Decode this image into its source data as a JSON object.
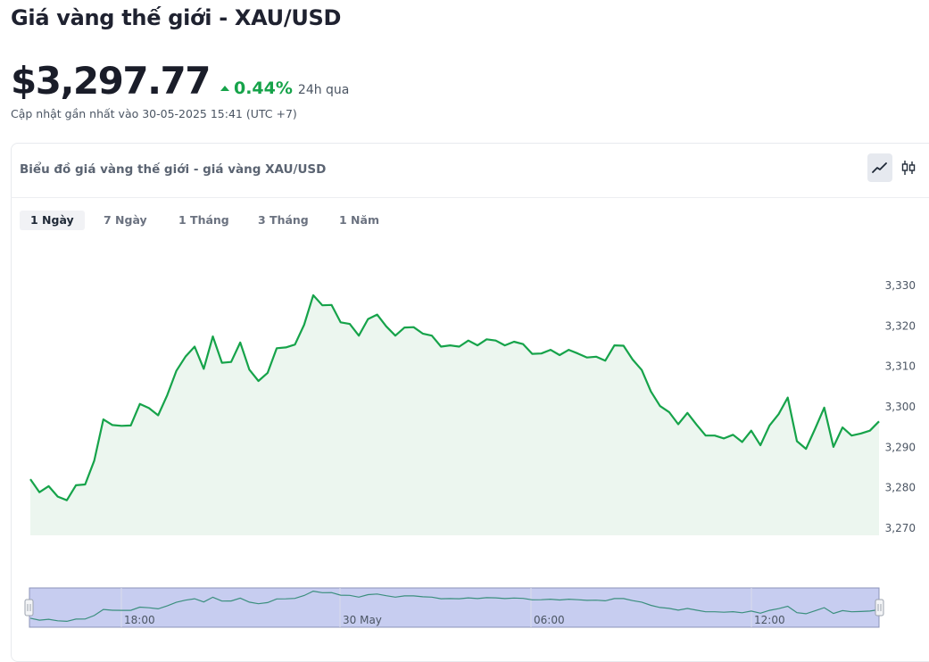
{
  "header": {
    "title": "Giá vàng thế giới - XAU/USD",
    "price": "$3,297.77",
    "change": "0.44%",
    "period": "24h qua",
    "updated": "Cập nhật gần nhất vào 30-05-2025 15:41 (UTC +7)"
  },
  "card": {
    "title": "Biểu đồ giá vàng thế giới - giá vàng XAU/USD",
    "chart_types": [
      "line-chart-icon",
      "candlestick-icon"
    ]
  },
  "ranges": [
    "1 Ngày",
    "7 Ngày",
    "1 Tháng",
    "3 Tháng",
    "1 Năm"
  ],
  "active_range": "1 Ngày",
  "colors": {
    "line": "#16a34a",
    "fill": "#ecf6ef",
    "navigator": "#c7cdf0",
    "up": "#16a34a"
  },
  "chart_data": {
    "type": "area",
    "title": "",
    "xlabel": "",
    "ylabel": "",
    "ylim": [
      3270,
      3330
    ],
    "yticks": [
      3330,
      3320,
      3310,
      3300,
      3290,
      3280,
      3270
    ],
    "ytick_labels": [
      "3,330",
      "3,320",
      "3,310",
      "3,300",
      "3,290",
      "3,280",
      "3,270"
    ],
    "navigator_labels": [
      "18:00",
      "30 May",
      "06:00",
      "12:00"
    ],
    "grid": false,
    "series": [
      {
        "values": [
          3282.1,
          3278.9,
          3280.4,
          3277.8,
          3276.9,
          3280.6,
          3280.8,
          3286.7,
          3296.9,
          3295.5,
          3295.3,
          3295.4,
          3300.7,
          3299.7,
          3297.9,
          3302.9,
          3308.9,
          3312.4,
          3314.9,
          3309.4,
          3317.4,
          3310.9,
          3311.1,
          3315.9,
          3309.2,
          3306.4,
          3308.4,
          3314.5,
          3314.7,
          3315.4,
          3320.3,
          3327.6,
          3325.1,
          3325.2,
          3320.9,
          3320.5,
          3317.6,
          3321.7,
          3322.8,
          3319.9,
          3317.6,
          3319.6,
          3319.7,
          3318.1,
          3317.6,
          3314.9,
          3315.2,
          3314.9,
          3316.4,
          3315.2,
          3316.7,
          3316.4,
          3315.2,
          3316.1,
          3315.5,
          3313.1,
          3313.2,
          3314.1,
          3312.8,
          3314.1,
          3313.2,
          3312.2,
          3312.4,
          3311.4,
          3315.2,
          3315.1,
          3311.7,
          3309.1,
          3303.8,
          3300.2,
          3298.7,
          3295.7,
          3298.5,
          3295.6,
          3292.9,
          3292.9,
          3292.2,
          3293.1,
          3291.3,
          3294.1,
          3290.5,
          3295.4,
          3298.2,
          3302.3,
          3291.5,
          3289.6,
          3294.6,
          3299.8,
          3290.1,
          3294.9,
          3292.9,
          3293.4,
          3294.1,
          3296.4
        ]
      }
    ]
  }
}
